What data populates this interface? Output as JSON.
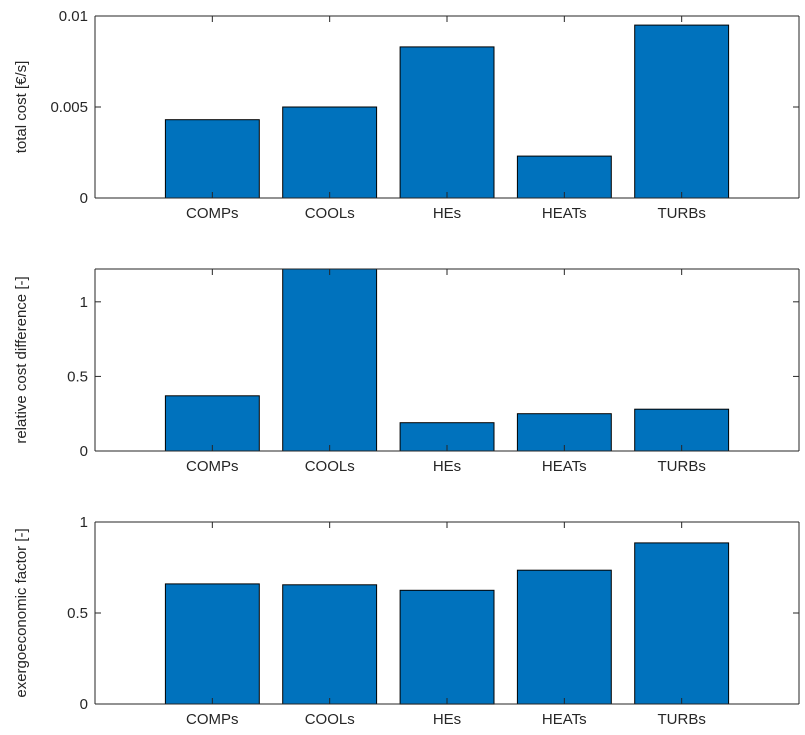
{
  "chart_data": [
    {
      "type": "bar",
      "categories": [
        "COMPs",
        "COOLs",
        "HEs",
        "HEATs",
        "TURBs"
      ],
      "values": [
        0.0043,
        0.005,
        0.0083,
        0.0023,
        0.0095
      ],
      "ylabel": "total cost [€/s]",
      "xlabel": "",
      "ylim": [
        0,
        0.01
      ],
      "yticks": [
        0,
        0.005,
        0.01
      ],
      "ytick_labels": [
        "0",
        "0.005",
        "0.01"
      ],
      "bar_color": "#0072bd",
      "grid": false
    },
    {
      "type": "bar",
      "categories": [
        "COMPs",
        "COOLs",
        "HEs",
        "HEATs",
        "TURBs"
      ],
      "values": [
        0.37,
        1.22,
        0.19,
        0.25,
        0.28
      ],
      "ylabel": "relative cost difference [-]",
      "xlabel": "",
      "ylim": [
        0,
        1.22
      ],
      "yticks": [
        0,
        0.5,
        1
      ],
      "ytick_labels": [
        "0",
        "0.5",
        "1"
      ],
      "bar_color": "#0072bd",
      "grid": false
    },
    {
      "type": "bar",
      "categories": [
        "COMPs",
        "COOLs",
        "HEs",
        "HEATs",
        "TURBs"
      ],
      "values": [
        0.66,
        0.655,
        0.625,
        0.735,
        0.885
      ],
      "ylabel": "exergoeconomic factor [-]",
      "xlabel": "",
      "ylim": [
        0,
        1
      ],
      "yticks": [
        0,
        0.5,
        1
      ],
      "ytick_labels": [
        "0",
        "0.5",
        "1"
      ],
      "bar_color": "#0072bd",
      "grid": false
    }
  ]
}
